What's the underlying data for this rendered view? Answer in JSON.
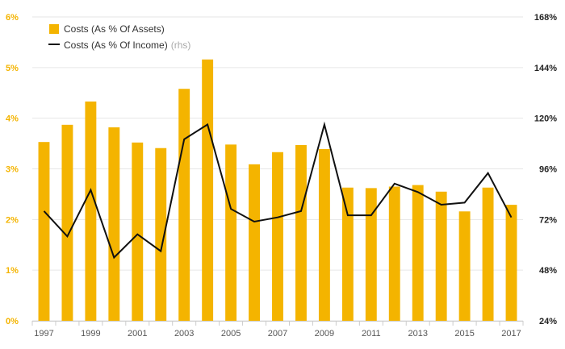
{
  "chart_data": {
    "type": "bar+line",
    "title": "",
    "categories": [
      "1997",
      "1998",
      "1999",
      "2000",
      "2001",
      "2002",
      "2003",
      "2004",
      "2005",
      "2006",
      "2007",
      "2008",
      "2009",
      "2010",
      "2011",
      "2012",
      "2013",
      "2014",
      "2015",
      "2016",
      "2017"
    ],
    "x_tick_labels": [
      "1997",
      "1999",
      "2001",
      "2003",
      "2005",
      "2007",
      "2009",
      "2011",
      "2013",
      "2015",
      "2017"
    ],
    "series": [
      {
        "name": "Costs (As % Of Assets)",
        "type": "bar",
        "axis": "left",
        "color": "#F4B400",
        "values": [
          3.53,
          3.87,
          4.33,
          3.82,
          3.52,
          3.41,
          4.58,
          5.16,
          3.48,
          3.09,
          3.33,
          3.47,
          3.39,
          2.63,
          2.62,
          2.65,
          2.68,
          2.55,
          2.16,
          2.63,
          2.29
        ]
      },
      {
        "name": "Costs (As % Of Income)",
        "note": "(rhs)",
        "type": "line",
        "axis": "right",
        "color": "#111111",
        "values": [
          76,
          64,
          86,
          54,
          65,
          57,
          110,
          117,
          77,
          71,
          73,
          76,
          117,
          74,
          74,
          89,
          85,
          79,
          80,
          94,
          73
        ]
      }
    ],
    "y_left": {
      "min": 0,
      "max": 6,
      "ticks": [
        "0%",
        "1%",
        "2%",
        "3%",
        "4%",
        "5%",
        "6%"
      ],
      "color": "#F4B400"
    },
    "y_right": {
      "min": 24,
      "max": 168,
      "ticks": [
        "24%",
        "48%",
        "72%",
        "96%",
        "120%",
        "144%",
        "168%"
      ],
      "color": "#222222"
    },
    "grid": true,
    "legend_position": "top-left"
  }
}
